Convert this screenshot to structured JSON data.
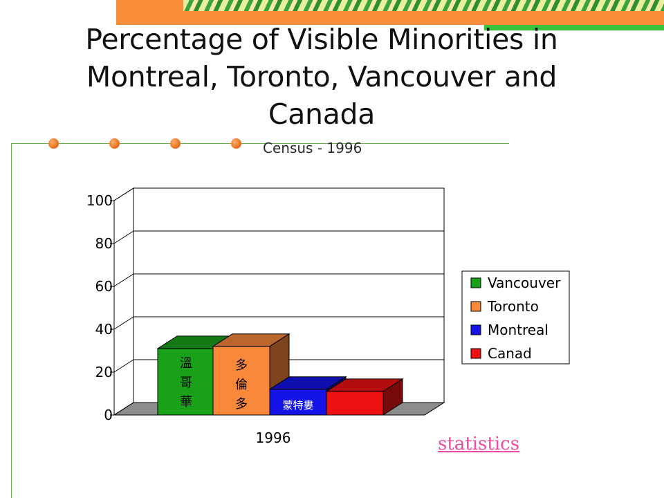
{
  "slide": {
    "title": "Percentage of Visible Minorities in Montreal, Toronto, Vancouver and Canada",
    "subtitle": "Census - 1996",
    "link_label": "statistics"
  },
  "chart_data": {
    "type": "bar",
    "categories": [
      "1996"
    ],
    "series": [
      {
        "name": "Vancouver",
        "values": [
          31
        ],
        "color": "#1aa11a",
        "bar_label": "溫哥華"
      },
      {
        "name": "Toronto",
        "values": [
          32
        ],
        "color": "#f9883a",
        "bar_label": "多倫多"
      },
      {
        "name": "Montreal",
        "values": [
          12
        ],
        "color": "#1414e6",
        "bar_label": "蒙特婁"
      },
      {
        "name": "Canad",
        "values": [
          11
        ],
        "color": "#ee1111",
        "bar_label": ""
      }
    ],
    "yticks": [
      "0",
      "20",
      "40",
      "60",
      "80",
      "100"
    ],
    "ylim": [
      0,
      100
    ],
    "grid": true,
    "legend_position": "right",
    "title": "",
    "xlabel": "",
    "ylabel": ""
  }
}
